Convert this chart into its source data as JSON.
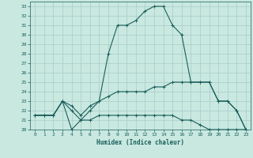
{
  "xlabel": "Humidex (Indice chaleur)",
  "xlim": [
    -0.5,
    23.5
  ],
  "ylim": [
    20,
    33.5
  ],
  "xticks": [
    0,
    1,
    2,
    3,
    4,
    5,
    6,
    7,
    8,
    9,
    10,
    11,
    12,
    13,
    14,
    15,
    16,
    17,
    18,
    19,
    20,
    21,
    22,
    23
  ],
  "yticks": [
    20,
    21,
    22,
    23,
    24,
    25,
    26,
    27,
    28,
    29,
    30,
    31,
    32,
    33
  ],
  "bg_color": "#c8e8e0",
  "line_color": "#1a5f5a",
  "grid_color": "#a8ccc8",
  "line1_x": [
    0,
    1,
    2,
    3,
    4,
    5,
    6,
    7,
    8,
    9,
    10,
    11,
    12,
    13,
    14,
    15,
    16,
    17,
    18,
    19,
    20,
    21,
    22,
    23
  ],
  "line1_y": [
    21.5,
    21.5,
    21.5,
    23.0,
    22.0,
    21.0,
    22.0,
    23.0,
    28.0,
    31.0,
    31.0,
    31.5,
    32.5,
    33.0,
    33.0,
    31.0,
    30.0,
    25.0,
    25.0,
    25.0,
    23.0,
    23.0,
    22.0,
    20.0
  ],
  "line2_x": [
    0,
    1,
    2,
    3,
    4,
    5,
    6,
    7,
    8,
    9,
    10,
    11,
    12,
    13,
    14,
    15,
    16,
    17,
    18,
    19,
    20,
    21,
    22,
    23
  ],
  "line2_y": [
    21.5,
    21.5,
    21.5,
    23.0,
    22.5,
    21.5,
    22.5,
    23.0,
    23.5,
    24.0,
    24.0,
    24.0,
    24.0,
    24.5,
    24.5,
    25.0,
    25.0,
    25.0,
    25.0,
    25.0,
    23.0,
    23.0,
    22.0,
    20.0
  ],
  "line3_x": [
    0,
    1,
    2,
    3,
    4,
    5,
    6,
    7,
    8,
    9,
    10,
    11,
    12,
    13,
    14,
    15,
    16,
    17,
    18,
    19,
    20,
    21,
    22,
    23
  ],
  "line3_y": [
    21.5,
    21.5,
    21.5,
    23.0,
    20.0,
    21.0,
    21.0,
    21.5,
    21.5,
    21.5,
    21.5,
    21.5,
    21.5,
    21.5,
    21.5,
    21.5,
    21.0,
    21.0,
    20.5,
    20.0,
    20.0,
    20.0,
    20.0,
    20.0
  ]
}
